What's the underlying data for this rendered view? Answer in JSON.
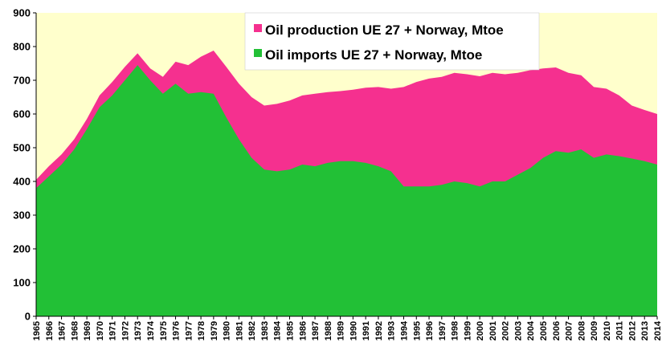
{
  "chart_data": {
    "type": "area",
    "stacked": false,
    "x": [
      1965,
      1966,
      1967,
      1968,
      1969,
      1970,
      1971,
      1972,
      1973,
      1974,
      1975,
      1976,
      1977,
      1978,
      1979,
      1980,
      1981,
      1982,
      1983,
      1984,
      1985,
      1986,
      1987,
      1988,
      1989,
      1990,
      1991,
      1992,
      1993,
      1994,
      1995,
      1996,
      1997,
      1998,
      1999,
      2000,
      2001,
      2002,
      2003,
      2004,
      2005,
      2006,
      2007,
      2008,
      2009,
      2010,
      2011,
      2012,
      2013,
      2014
    ],
    "x_tick_labels": [
      "1965",
      "1966",
      "1967",
      "1968",
      "1969",
      "1970",
      "1971",
      "1972",
      "1973",
      "1974",
      "1975",
      "1976",
      "1977",
      "1978",
      "1979",
      "1980",
      "1981",
      "1982",
      "1983",
      "1984",
      "1985",
      "1986",
      "1987",
      "1988",
      "1989",
      "1990",
      "1991",
      "1992",
      "1993",
      "1994",
      "1995",
      "1996",
      "1997",
      "1998",
      "1999",
      "2000",
      "2001",
      "2002",
      "2003",
      "2004",
      "2005",
      "2006",
      "2007",
      "2008",
      "2009",
      "2010",
      "2011",
      "2012",
      "2013",
      "2014"
    ],
    "series": [
      {
        "name": "Oil production UE 27 + Norway, Mtoe",
        "color": "#f5308f",
        "values": [
          405,
          445,
          480,
          525,
          585,
          655,
          695,
          740,
          780,
          735,
          710,
          755,
          745,
          770,
          788,
          740,
          690,
          650,
          625,
          630,
          640,
          655,
          660,
          665,
          668,
          672,
          678,
          680,
          675,
          680,
          695,
          705,
          710,
          722,
          718,
          712,
          722,
          718,
          722,
          730,
          735,
          738,
          722,
          715,
          680,
          675,
          655,
          625,
          612,
          600
        ]
      },
      {
        "name": "Oil imports UE 27 + Norway, Mtoe",
        "color": "#22c036",
        "values": [
          380,
          415,
          450,
          495,
          555,
          620,
          655,
          700,
          745,
          700,
          660,
          690,
          660,
          665,
          660,
          590,
          525,
          470,
          435,
          430,
          435,
          450,
          445,
          455,
          460,
          460,
          455,
          445,
          430,
          385,
          385,
          385,
          390,
          400,
          395,
          385,
          400,
          400,
          420,
          440,
          470,
          490,
          485,
          495,
          470,
          480,
          475,
          468,
          460,
          450
        ]
      }
    ],
    "ylim": [
      0,
      900
    ],
    "y_ticks": [
      "0",
      "100",
      "200",
      "300",
      "400",
      "500",
      "600",
      "700",
      "800",
      "900"
    ],
    "legend_position": "top-center-inside",
    "plot_background": "#ffffcc",
    "grid": false
  }
}
